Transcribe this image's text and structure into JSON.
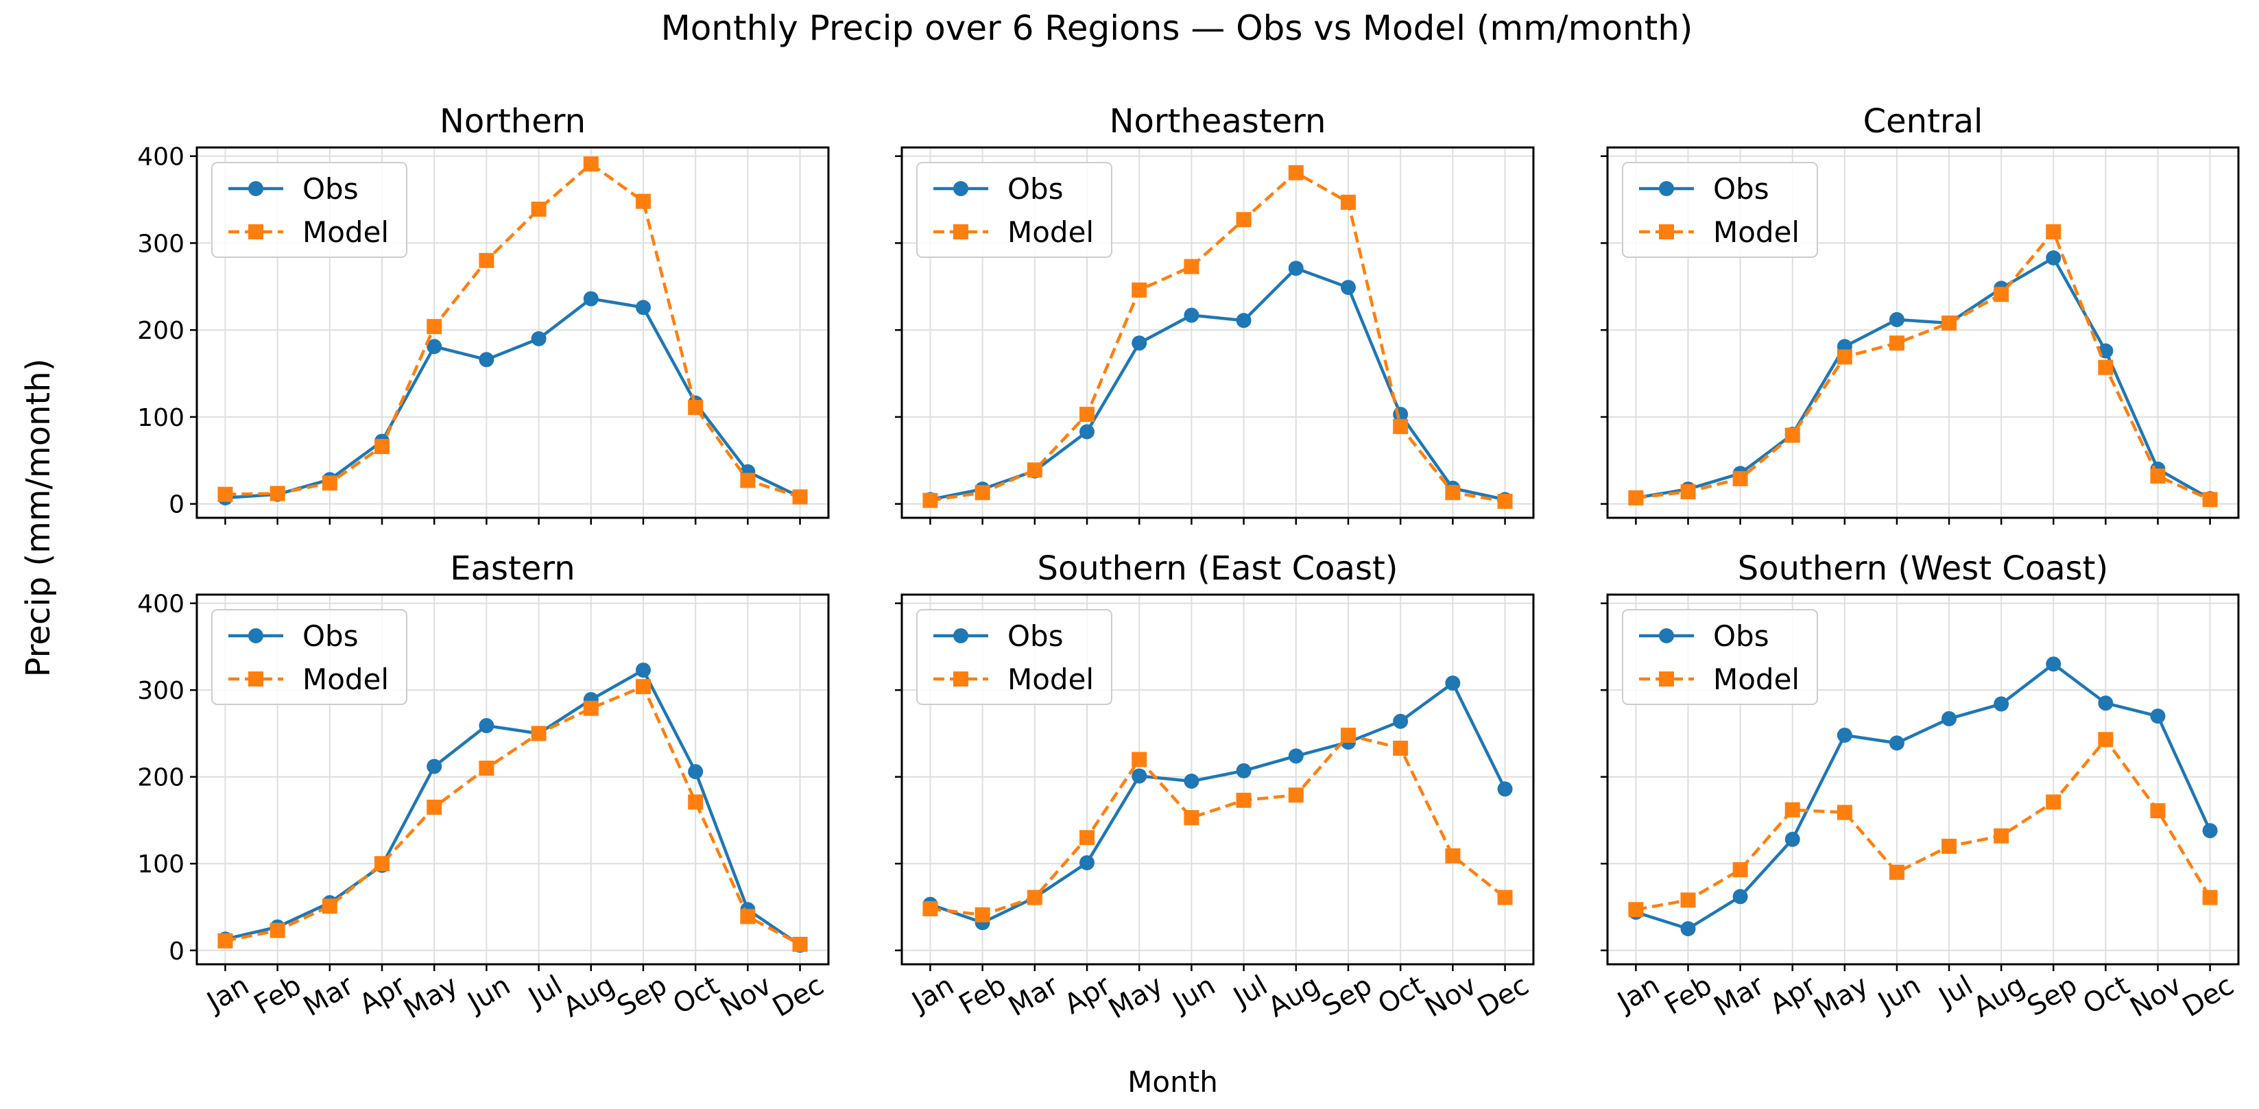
{
  "figure": {
    "title": "Monthly Precip over 6 Regions — Obs vs Model (mm/month)",
    "xlabel": "Month",
    "ylabel": "Precip (mm/month)"
  },
  "chart_data": [
    {
      "type": "line",
      "title": "Northern",
      "categories": [
        "Jan",
        "Feb",
        "Mar",
        "Apr",
        "May",
        "Jun",
        "Jul",
        "Aug",
        "Sep",
        "Oct",
        "Nov",
        "Dec"
      ],
      "series": [
        {
          "name": "Obs",
          "color": "#1f77b4",
          "marker": "circle",
          "style": "solid",
          "values": [
            7,
            11,
            28,
            72,
            181,
            166,
            190,
            236,
            226,
            116,
            37,
            8
          ]
        },
        {
          "name": "Model",
          "color": "#ff7f0e",
          "marker": "square",
          "style": "dashed",
          "values": [
            11,
            12,
            24,
            66,
            204,
            280,
            339,
            391,
            348,
            111,
            27,
            8
          ]
        }
      ],
      "ylim": [
        -16,
        410
      ],
      "yticks": [
        0,
        100,
        200,
        300,
        400
      ],
      "legend": "top-left",
      "grid": true
    },
    {
      "type": "line",
      "title": "Northeastern",
      "categories": [
        "Jan",
        "Feb",
        "Mar",
        "Apr",
        "May",
        "Jun",
        "Jul",
        "Aug",
        "Sep",
        "Oct",
        "Nov",
        "Dec"
      ],
      "series": [
        {
          "name": "Obs",
          "color": "#1f77b4",
          "marker": "circle",
          "style": "solid",
          "values": [
            5,
            17,
            38,
            83,
            185,
            217,
            211,
            271,
            249,
            103,
            18,
            5
          ]
        },
        {
          "name": "Model",
          "color": "#ff7f0e",
          "marker": "square",
          "style": "dashed",
          "values": [
            4,
            13,
            39,
            103,
            246,
            273,
            327,
            381,
            347,
            89,
            13,
            3
          ]
        }
      ],
      "ylim": [
        -16,
        410
      ],
      "yticks": [
        0,
        100,
        200,
        300,
        400
      ],
      "legend": "top-left",
      "grid": true
    },
    {
      "type": "line",
      "title": "Central",
      "categories": [
        "Jan",
        "Feb",
        "Mar",
        "Apr",
        "May",
        "Jun",
        "Jul",
        "Aug",
        "Sep",
        "Oct",
        "Nov",
        "Dec"
      ],
      "series": [
        {
          "name": "Obs",
          "color": "#1f77b4",
          "marker": "circle",
          "style": "solid",
          "values": [
            7,
            17,
            35,
            80,
            181,
            212,
            208,
            248,
            283,
            176,
            40,
            6
          ]
        },
        {
          "name": "Model",
          "color": "#ff7f0e",
          "marker": "square",
          "style": "dashed",
          "values": [
            7,
            14,
            29,
            79,
            169,
            185,
            208,
            241,
            313,
            157,
            32,
            5
          ]
        }
      ],
      "ylim": [
        -16,
        410
      ],
      "yticks": [
        0,
        100,
        200,
        300,
        400
      ],
      "legend": "top-left",
      "grid": true
    },
    {
      "type": "line",
      "title": "Eastern",
      "categories": [
        "Jan",
        "Feb",
        "Mar",
        "Apr",
        "May",
        "Jun",
        "Jul",
        "Aug",
        "Sep",
        "Oct",
        "Nov",
        "Dec"
      ],
      "series": [
        {
          "name": "Obs",
          "color": "#1f77b4",
          "marker": "circle",
          "style": "solid",
          "values": [
            13,
            27,
            55,
            98,
            212,
            259,
            250,
            289,
            323,
            206,
            47,
            6
          ]
        },
        {
          "name": "Model",
          "color": "#ff7f0e",
          "marker": "square",
          "style": "dashed",
          "values": [
            11,
            23,
            51,
            100,
            165,
            210,
            250,
            279,
            304,
            171,
            39,
            7
          ]
        }
      ],
      "ylim": [
        -16,
        410
      ],
      "yticks": [
        0,
        100,
        200,
        300,
        400
      ],
      "legend": "top-left",
      "grid": true
    },
    {
      "type": "line",
      "title": "Southern (East Coast)",
      "categories": [
        "Jan",
        "Feb",
        "Mar",
        "Apr",
        "May",
        "Jun",
        "Jul",
        "Aug",
        "Sep",
        "Oct",
        "Nov",
        "Dec"
      ],
      "series": [
        {
          "name": "Obs",
          "color": "#1f77b4",
          "marker": "circle",
          "style": "solid",
          "values": [
            53,
            32,
            61,
            101,
            201,
            195,
            207,
            224,
            240,
            264,
            308,
            186
          ]
        },
        {
          "name": "Model",
          "color": "#ff7f0e",
          "marker": "square",
          "style": "dashed",
          "values": [
            48,
            41,
            61,
            130,
            220,
            153,
            173,
            179,
            248,
            233,
            109,
            61
          ]
        }
      ],
      "ylim": [
        -16,
        410
      ],
      "yticks": [
        0,
        100,
        200,
        300,
        400
      ],
      "legend": "top-left",
      "grid": true
    },
    {
      "type": "line",
      "title": "Southern (West Coast)",
      "categories": [
        "Jan",
        "Feb",
        "Mar",
        "Apr",
        "May",
        "Jun",
        "Jul",
        "Aug",
        "Sep",
        "Oct",
        "Nov",
        "Dec"
      ],
      "series": [
        {
          "name": "Obs",
          "color": "#1f77b4",
          "marker": "circle",
          "style": "solid",
          "values": [
            44,
            25,
            62,
            128,
            248,
            239,
            267,
            284,
            330,
            285,
            270,
            138
          ]
        },
        {
          "name": "Model",
          "color": "#ff7f0e",
          "marker": "square",
          "style": "dashed",
          "values": [
            47,
            58,
            93,
            162,
            159,
            90,
            120,
            132,
            171,
            243,
            161,
            61
          ]
        }
      ],
      "ylim": [
        -16,
        410
      ],
      "yticks": [
        0,
        100,
        200,
        300,
        400
      ],
      "legend": "top-left",
      "grid": true
    }
  ]
}
